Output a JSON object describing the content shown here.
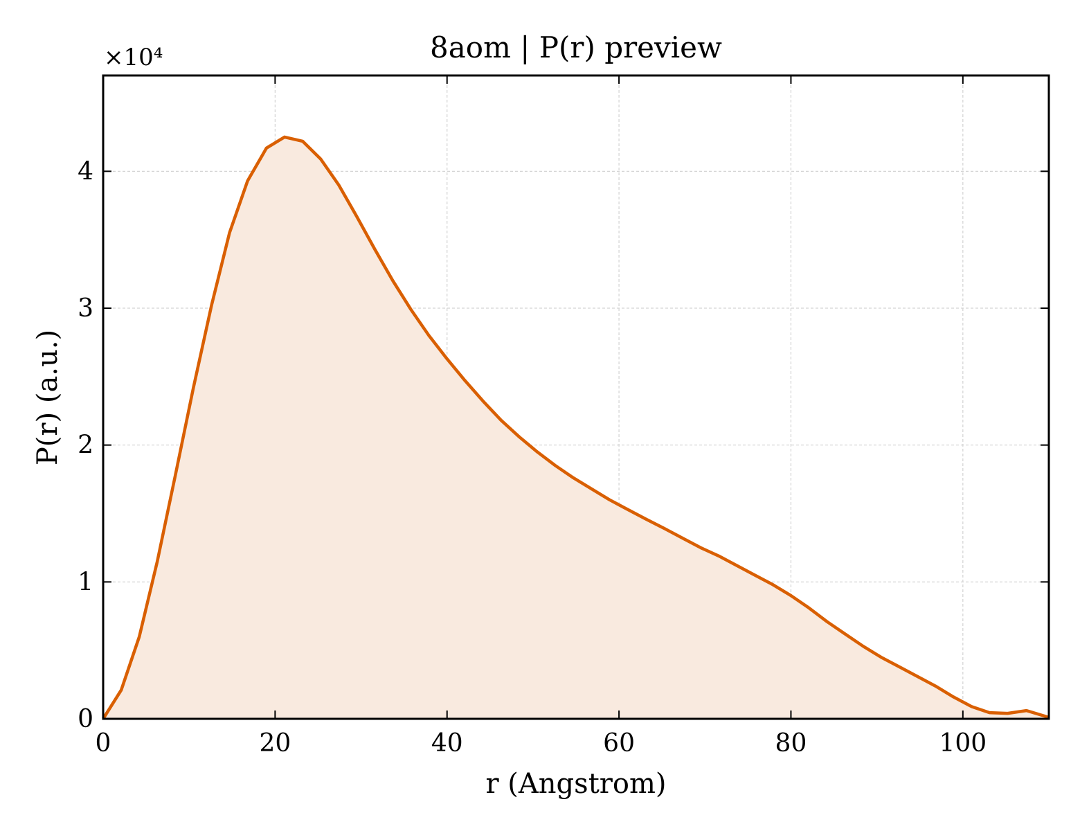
{
  "chart_data": {
    "type": "area",
    "title": "8aom | P(r) preview",
    "xlabel": "r (Angstrom)",
    "ylabel": "P(r) (a.u.)",
    "y_multiplier_label": "×10⁴",
    "xlim": [
      0,
      110
    ],
    "ylim": [
      0,
      4.7
    ],
    "y_scale_factor": 10000,
    "x_ticks": [
      0,
      20,
      40,
      60,
      80,
      100
    ],
    "y_ticks": [
      0,
      1,
      2,
      3,
      4
    ],
    "grid": true,
    "legend": "none",
    "colors": {
      "line": "#d95f02",
      "fill": "#f9eadf",
      "grid": "#d3d3d3",
      "axes": "#000000"
    },
    "series": [
      {
        "x": [
          0,
          2.1,
          4.2,
          6.3,
          8.4,
          10.5,
          12.6,
          14.7,
          16.8,
          19.0,
          21.1,
          23.2,
          25.3,
          27.4,
          29.5,
          31.6,
          33.7,
          35.8,
          37.9,
          40.0,
          42.1,
          44.2,
          46.3,
          48.4,
          50.5,
          52.6,
          54.7,
          56.8,
          58.9,
          61.0,
          63.1,
          65.3,
          67.4,
          69.5,
          71.6,
          73.7,
          75.8,
          77.9,
          80.0,
          82.1,
          84.2,
          86.3,
          88.4,
          90.5,
          92.6,
          94.7,
          96.8,
          98.9,
          101.0,
          103.1,
          105.2,
          107.4,
          109.5,
          110.0
        ],
        "y": [
          0.0,
          0.21,
          0.6,
          1.15,
          1.78,
          2.42,
          3.02,
          3.55,
          3.93,
          4.17,
          4.25,
          4.22,
          4.09,
          3.9,
          3.67,
          3.43,
          3.2,
          2.99,
          2.8,
          2.63,
          2.47,
          2.32,
          2.18,
          2.06,
          1.95,
          1.85,
          1.76,
          1.68,
          1.6,
          1.53,
          1.46,
          1.39,
          1.32,
          1.25,
          1.19,
          1.12,
          1.05,
          0.98,
          0.9,
          0.81,
          0.71,
          0.62,
          0.53,
          0.45,
          0.38,
          0.31,
          0.24,
          0.16,
          0.09,
          0.045,
          0.04,
          0.06,
          0.02,
          0.01
        ]
      }
    ]
  }
}
